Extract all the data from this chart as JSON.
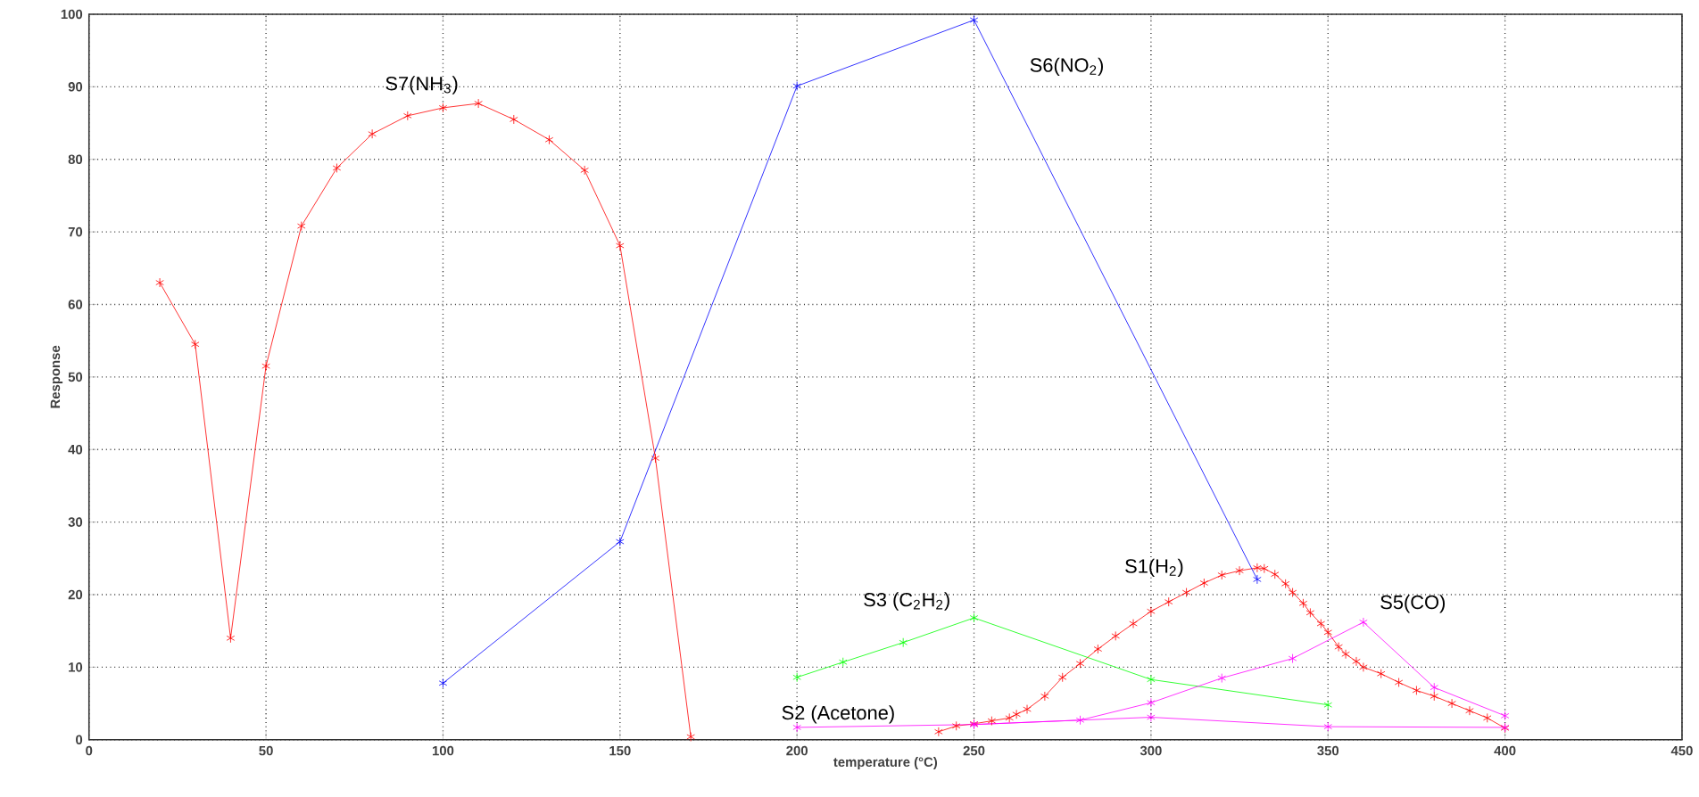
{
  "chart_data": {
    "type": "line",
    "xlabel": "temperature (°C)",
    "ylabel": "Response",
    "xlim": [
      0,
      450
    ],
    "ylim": [
      0,
      100
    ],
    "xticks": [
      0,
      50,
      100,
      150,
      200,
      250,
      300,
      350,
      400,
      450
    ],
    "yticks": [
      0,
      10,
      20,
      30,
      40,
      50,
      60,
      70,
      80,
      90,
      100
    ],
    "grid": true,
    "marker": "cross",
    "line_style": "solid",
    "series": [
      {
        "name": "S1(H$_{2}$)",
        "color": "#ff0000",
        "x": [
          240,
          245,
          250,
          255,
          260,
          262,
          265,
          270,
          275,
          280,
          285,
          290,
          295,
          300,
          305,
          310,
          315,
          320,
          325,
          330,
          332,
          335,
          338,
          340,
          343,
          345,
          348,
          350,
          353,
          355,
          358,
          360,
          365,
          370,
          375,
          380,
          385,
          390,
          395,
          400
        ],
        "values": [
          1.1,
          1.9,
          2.2,
          2.6,
          3.0,
          3.5,
          4.2,
          6.0,
          8.6,
          10.5,
          12.5,
          14.3,
          16.0,
          17.7,
          19.0,
          20.3,
          21.6,
          22.7,
          23.3,
          23.7,
          23.6,
          22.8,
          21.5,
          20.3,
          18.8,
          17.5,
          16.0,
          14.8,
          12.8,
          11.8,
          10.8,
          10.0,
          9.1,
          7.9,
          6.8,
          6.0,
          5.0,
          4.0,
          3.0,
          1.6
        ]
      },
      {
        "name": "S2 (Acetone)",
        "color": "#ff00ff",
        "x": [
          200,
          250,
          300,
          350,
          400
        ],
        "values": [
          1.7,
          2.1,
          3.1,
          1.8,
          1.7
        ]
      },
      {
        "name": "S3 (C$_{2}$H$_{2}$)",
        "color": "#00ff00",
        "x": [
          200,
          213,
          230,
          250,
          300,
          350
        ],
        "values": [
          8.6,
          10.7,
          13.4,
          16.8,
          8.3,
          4.8
        ]
      },
      {
        "name": "S5(CO)",
        "color": "#ff00ff",
        "x": [
          250,
          280,
          300,
          320,
          340,
          360,
          380,
          400
        ],
        "values": [
          2.1,
          2.7,
          5.1,
          8.5,
          11.2,
          16.2,
          7.2,
          3.3
        ]
      },
      {
        "name": "S6(NO$_{2}$)",
        "color": "#0000ff",
        "x": [
          100,
          150,
          200,
          250,
          330
        ],
        "values": [
          7.8,
          27.3,
          90.1,
          99.2,
          22.1
        ]
      },
      {
        "name": "S7(NH$_{3}$)",
        "color": "#ff0000",
        "x": [
          20,
          30,
          40,
          50,
          60,
          70,
          80,
          90,
          100,
          110,
          120,
          130,
          140,
          150,
          160,
          170
        ],
        "values": [
          63,
          54.5,
          14,
          51.5,
          70.8,
          78.8,
          83.5,
          86,
          87.1,
          87.7,
          85.5,
          82.7,
          78.5,
          68.1,
          38.8,
          0.4
        ]
      }
    ]
  }
}
